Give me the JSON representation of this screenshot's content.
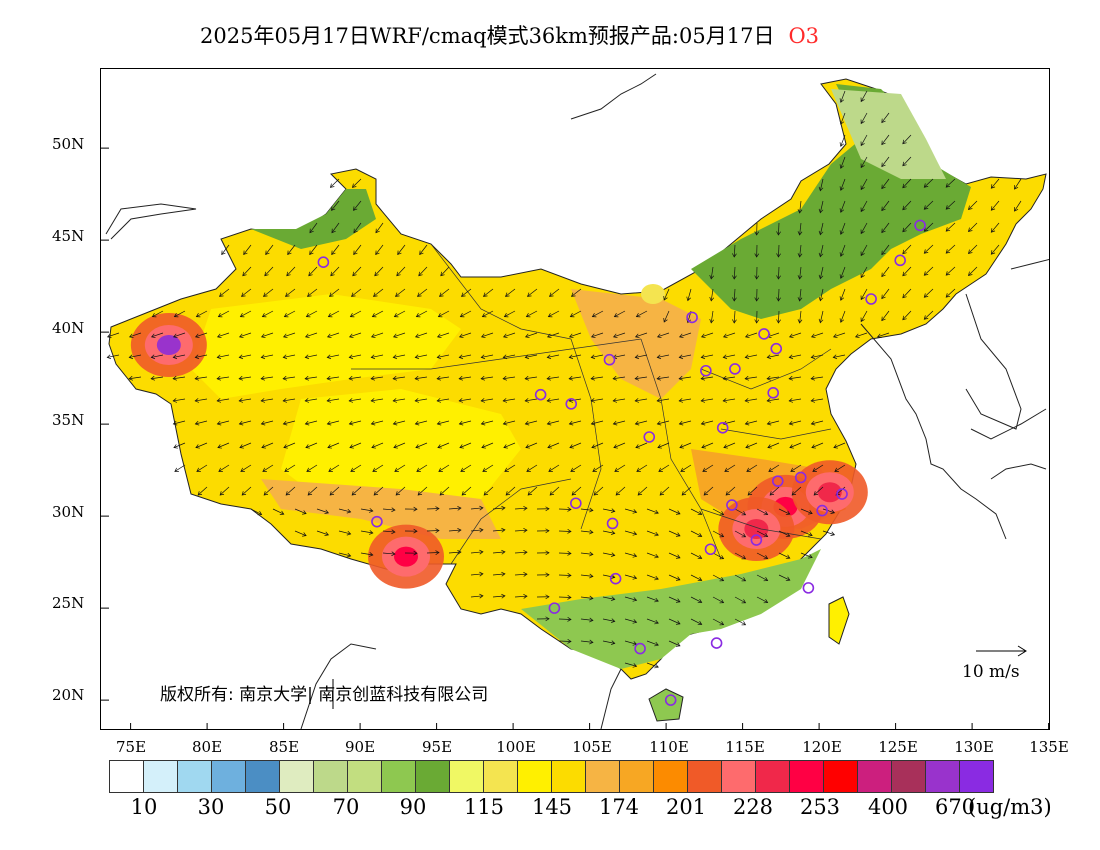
{
  "header": {
    "title": "2025年05月17日WRF/cmaq模式36km预报产品:05月17日",
    "pollutant": "O3"
  },
  "axes": {
    "lat_ticks": [
      "50N",
      "45N",
      "40N",
      "35N",
      "30N",
      "25N",
      "20N"
    ],
    "lon_ticks": [
      "75E",
      "80E",
      "85E",
      "90E",
      "95E",
      "100E",
      "105E",
      "110E",
      "115E",
      "120E",
      "125E",
      "130E",
      "135E"
    ]
  },
  "copyright": "版权所有: 南京大学| 南京创蓝科技有限公司",
  "wind_reference": {
    "label": "10 m/s"
  },
  "legend": {
    "colors": [
      "#ffffff",
      "#d4f0fa",
      "#a0d8f0",
      "#6eb0de",
      "#4b8ec4",
      "#dfecc0",
      "#bdd98a",
      "#c2de80",
      "#8ec850",
      "#6aaa34",
      "#f0f864",
      "#f4e450",
      "#fff000",
      "#fcdc00",
      "#f6b444",
      "#f7a723",
      "#fc8b00",
      "#f05a28",
      "#fe6b6d",
      "#f0284a",
      "#ff0044",
      "#ff0000",
      "#cc1f7e",
      "#a8305a",
      "#9933cc",
      "#8a2be2"
    ],
    "labels": [
      "10",
      "30",
      "50",
      "70",
      "90",
      "115",
      "145",
      "174",
      "201",
      "228",
      "253",
      "400",
      "670"
    ],
    "unit": "(ug/m3)"
  },
  "map": {
    "stations": [
      {
        "lon": 87.6,
        "lat": 43.8
      },
      {
        "lon": 91.1,
        "lat": 29.7
      },
      {
        "lon": 101.8,
        "lat": 36.6
      },
      {
        "lon": 103.8,
        "lat": 36.1
      },
      {
        "lon": 106.3,
        "lat": 38.5
      },
      {
        "lon": 104.1,
        "lat": 30.7
      },
      {
        "lon": 102.7,
        "lat": 25.0
      },
      {
        "lon": 106.7,
        "lat": 26.6
      },
      {
        "lon": 106.5,
        "lat": 29.6
      },
      {
        "lon": 108.9,
        "lat": 34.3
      },
      {
        "lon": 111.7,
        "lat": 40.8
      },
      {
        "lon": 112.6,
        "lat": 37.9
      },
      {
        "lon": 114.5,
        "lat": 38.0
      },
      {
        "lon": 116.4,
        "lat": 39.9
      },
      {
        "lon": 117.2,
        "lat": 39.1
      },
      {
        "lon": 117.0,
        "lat": 36.7
      },
      {
        "lon": 113.7,
        "lat": 34.8
      },
      {
        "lon": 117.3,
        "lat": 31.9
      },
      {
        "lon": 118.8,
        "lat": 32.1
      },
      {
        "lon": 121.5,
        "lat": 31.2
      },
      {
        "lon": 120.2,
        "lat": 30.3
      },
      {
        "lon": 114.3,
        "lat": 30.6
      },
      {
        "lon": 112.9,
        "lat": 28.2
      },
      {
        "lon": 115.9,
        "lat": 28.7
      },
      {
        "lon": 119.3,
        "lat": 26.1
      },
      {
        "lon": 113.3,
        "lat": 23.1
      },
      {
        "lon": 108.3,
        "lat": 22.8
      },
      {
        "lon": 110.3,
        "lat": 20.0
      },
      {
        "lon": 123.4,
        "lat": 41.8
      },
      {
        "lon": 125.3,
        "lat": 43.9
      },
      {
        "lon": 126.6,
        "lat": 45.8
      }
    ],
    "hotspots": [
      {
        "lon": 77.5,
        "lat": 39.3,
        "level": 24
      },
      {
        "lon": 93.0,
        "lat": 27.8,
        "level": 20
      },
      {
        "lon": 117.8,
        "lat": 30.5,
        "level": 20
      },
      {
        "lon": 120.7,
        "lat": 31.3,
        "level": 19
      },
      {
        "lon": 115.9,
        "lat": 29.3,
        "level": 19
      }
    ]
  }
}
